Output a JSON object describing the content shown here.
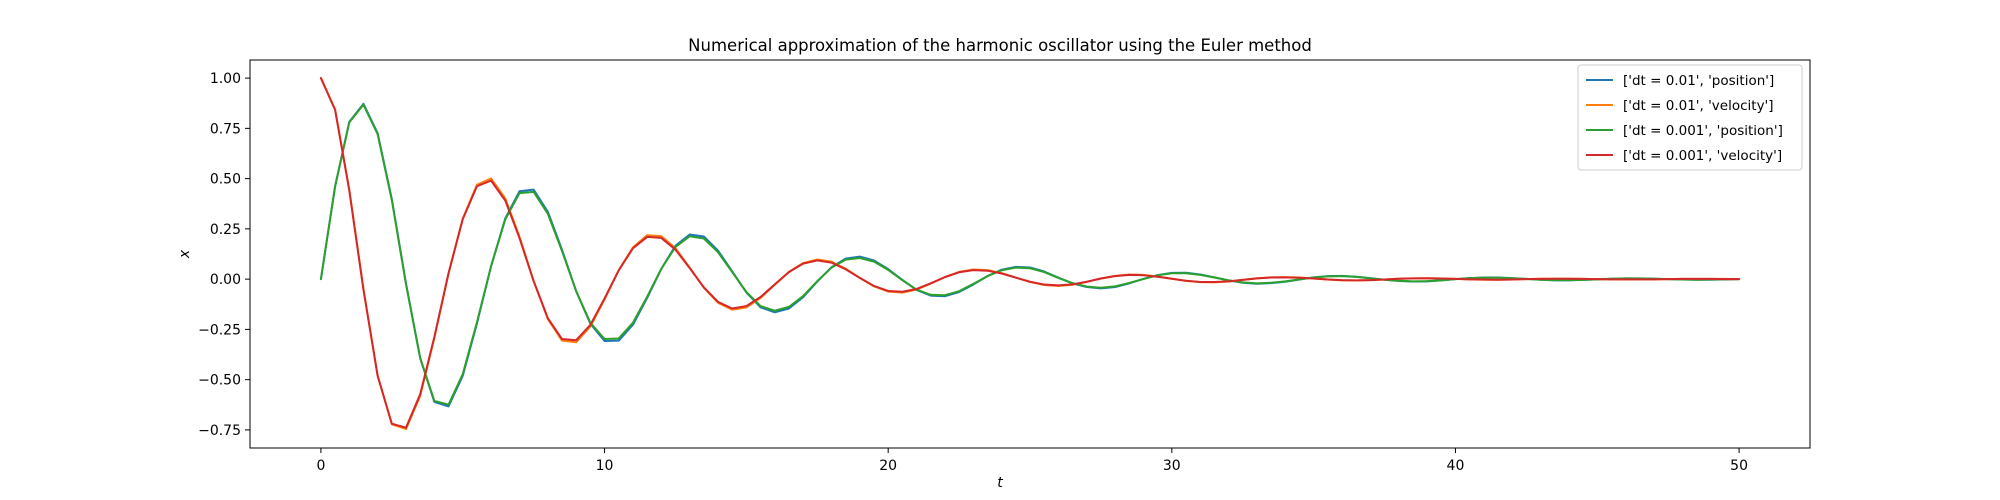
{
  "chart_data": {
    "type": "line",
    "title": "Numerical approximation of the harmonic oscillator using the Euler method",
    "xlabel": "t",
    "ylabel": "x",
    "xlim": [
      -2.5,
      52.5
    ],
    "ylim": [
      -0.84,
      1.09
    ],
    "xticks": [
      0,
      10,
      20,
      30,
      40,
      50
    ],
    "yticks": [
      -0.75,
      -0.5,
      -0.25,
      0.0,
      0.25,
      0.5,
      0.75,
      1.0
    ],
    "xtick_labels": [
      "0",
      "10",
      "20",
      "30",
      "40",
      "50"
    ],
    "ytick_labels": [
      "−0.75",
      "−0.50",
      "−0.25",
      "0.00",
      "0.25",
      "0.50",
      "0.75",
      "1.00"
    ],
    "grid": false,
    "legend_position": "top-right",
    "series": [
      {
        "name": "['dt = 0.01', 'position']",
        "color": "#1f77b4",
        "x": [
          0,
          0.5,
          1.0,
          1.5,
          2.0,
          2.5,
          3.0,
          3.5,
          4.0,
          4.5,
          5.0,
          5.5,
          6.0,
          6.5,
          7.0,
          7.5,
          8.0,
          8.5,
          9.0,
          9.5,
          10.0,
          10.5,
          11.0,
          11.5,
          12.0,
          12.5,
          13.0,
          13.5,
          14.0,
          14.5,
          15.0,
          15.5,
          16.0,
          16.5,
          17.0,
          17.5,
          18.0,
          18.5,
          19.0,
          19.5,
          20.0,
          20.5,
          21.0,
          21.5,
          22.0,
          22.5,
          23.0,
          23.5,
          24.0,
          24.5,
          25.0,
          25.5,
          26.0,
          26.5,
          27.0,
          27.5,
          28.0,
          28.5,
          29.0,
          29.5,
          30.0,
          30.5,
          31.0,
          31.5,
          32.0,
          32.5,
          33.0,
          33.5,
          34.0,
          34.5,
          35.0,
          35.5,
          36.0,
          36.5,
          37.0,
          37.5,
          38.0,
          38.5,
          39.0,
          39.5,
          40.0,
          40.5,
          41.0,
          41.5,
          42.0,
          42.5,
          43.0,
          43.5,
          44.0,
          44.5,
          45.0,
          45.5,
          46.0,
          46.5,
          47.0,
          47.5,
          48.0,
          48.5,
          49.0,
          49.5,
          50.0
        ],
        "y": [
          0.0,
          0.461,
          0.782,
          0.872,
          0.726,
          0.398,
          -0.022,
          -0.393,
          -0.611,
          -0.633,
          -0.481,
          -0.221,
          0.064,
          0.302,
          0.437,
          0.445,
          0.335,
          0.146,
          -0.06,
          -0.222,
          -0.308,
          -0.306,
          -0.227,
          -0.094,
          0.051,
          0.166,
          0.222,
          0.212,
          0.142,
          0.039,
          -0.066,
          -0.14,
          -0.165,
          -0.146,
          -0.09,
          -0.012,
          0.059,
          0.102,
          0.112,
          0.093,
          0.05,
          -0.004,
          -0.054,
          -0.082,
          -0.085,
          -0.064,
          -0.027,
          0.015,
          0.047,
          0.061,
          0.058,
          0.038,
          0.007,
          -0.021,
          -0.039,
          -0.046,
          -0.039,
          -0.021,
          0.001,
          0.02,
          0.031,
          0.032,
          0.023,
          0.009,
          -0.006,
          -0.018,
          -0.023,
          -0.02,
          -0.013,
          -0.002,
          0.009,
          0.015,
          0.016,
          0.012,
          0.005,
          -0.003,
          -0.009,
          -0.012,
          -0.011,
          -0.006,
          0.0,
          0.005,
          0.008,
          0.008,
          0.005,
          0.001,
          -0.003,
          -0.006,
          -0.006,
          -0.004,
          -0.001,
          0.002,
          0.004,
          0.004,
          0.002,
          0.0,
          -0.002,
          -0.003,
          -0.003,
          -0.001,
          0.0
        ]
      },
      {
        "name": "['dt = 0.01', 'velocity']",
        "color": "#ff7f0e",
        "x": [
          0,
          0.5,
          1.0,
          1.5,
          2.0,
          2.5,
          3.0,
          3.5,
          4.0,
          4.5,
          5.0,
          5.5,
          6.0,
          6.5,
          7.0,
          7.5,
          8.0,
          8.5,
          9.0,
          9.5,
          10.0,
          10.5,
          11.0,
          11.5,
          12.0,
          12.5,
          13.0,
          13.5,
          14.0,
          14.5,
          15.0,
          15.5,
          16.0,
          16.5,
          17.0,
          17.5,
          18.0,
          18.5,
          19.0,
          19.5,
          20.0,
          20.5,
          21.0,
          21.5,
          22.0,
          22.5,
          23.0,
          23.5,
          24.0,
          24.5,
          25.0,
          25.5,
          26.0,
          26.5,
          27.0,
          27.5,
          28.0,
          28.5,
          29.0,
          29.5,
          30.0,
          30.5,
          31.0,
          31.5,
          32.0,
          32.5,
          33.0,
          33.5,
          34.0,
          34.5,
          35.0,
          35.5,
          36.0,
          36.5,
          37.0,
          37.5,
          38.0,
          38.5,
          39.0,
          39.5,
          40.0,
          40.5,
          41.0,
          41.5,
          42.0,
          42.5,
          43.0,
          43.5,
          44.0,
          44.5,
          45.0,
          45.5,
          46.0,
          46.5,
          47.0,
          47.5,
          48.0,
          48.5,
          49.0,
          49.5,
          50.0
        ],
        "y": [
          1.0,
          0.844,
          0.445,
          -0.049,
          -0.48,
          -0.722,
          -0.746,
          -0.581,
          -0.293,
          0.028,
          0.301,
          0.469,
          0.501,
          0.402,
          0.212,
          -0.009,
          -0.198,
          -0.306,
          -0.314,
          -0.236,
          -0.101,
          0.044,
          0.158,
          0.218,
          0.214,
          0.154,
          0.058,
          -0.042,
          -0.118,
          -0.152,
          -0.141,
          -0.094,
          -0.028,
          0.036,
          0.08,
          0.098,
          0.087,
          0.052,
          0.006,
          -0.036,
          -0.062,
          -0.067,
          -0.052,
          -0.022,
          0.01,
          0.036,
          0.048,
          0.045,
          0.03,
          0.008,
          -0.014,
          -0.029,
          -0.034,
          -0.028,
          -0.014,
          0.003,
          0.016,
          0.023,
          0.021,
          0.013,
          0.002,
          -0.009,
          -0.015,
          -0.016,
          -0.012,
          -0.004,
          0.004,
          0.009,
          0.01,
          0.008,
          0.003,
          -0.002,
          -0.006,
          -0.007,
          -0.005,
          -0.002,
          0.002,
          0.004,
          0.005,
          0.003,
          0.001,
          -0.001,
          -0.003,
          -0.003,
          -0.002,
          0.0,
          0.002,
          0.002,
          0.002,
          0.001,
          0.0,
          -0.001,
          -0.002,
          -0.001,
          -0.001,
          0.0,
          0.001,
          0.001,
          0.001,
          0.001,
          0.0
        ]
      },
      {
        "name": "['dt = 0.001', 'position']",
        "color": "#2ca02c",
        "x": [
          0,
          0.5,
          1.0,
          1.5,
          2.0,
          2.5,
          3.0,
          3.5,
          4.0,
          4.5,
          5.0,
          5.5,
          6.0,
          6.5,
          7.0,
          7.5,
          8.0,
          8.5,
          9.0,
          9.5,
          10.0,
          10.5,
          11.0,
          11.5,
          12.0,
          12.5,
          13.0,
          13.5,
          14.0,
          14.5,
          15.0,
          15.5,
          16.0,
          16.5,
          17.0,
          17.5,
          18.0,
          18.5,
          19.0,
          19.5,
          20.0,
          20.5,
          21.0,
          21.5,
          22.0,
          22.5,
          23.0,
          23.5,
          24.0,
          24.5,
          25.0,
          25.5,
          26.0,
          26.5,
          27.0,
          27.5,
          28.0,
          28.5,
          29.0,
          29.5,
          30.0,
          30.5,
          31.0,
          31.5,
          32.0,
          32.5,
          33.0,
          33.5,
          34.0,
          34.5,
          35.0,
          35.5,
          36.0,
          36.5,
          37.0,
          37.5,
          38.0,
          38.5,
          39.0,
          39.5,
          40.0,
          40.5,
          41.0,
          41.5,
          42.0,
          42.5,
          43.0,
          43.5,
          44.0,
          44.5,
          45.0,
          45.5,
          46.0,
          46.5,
          47.0,
          47.5,
          48.0,
          48.5,
          49.0,
          49.5,
          50.0
        ],
        "y": [
          0.0,
          0.461,
          0.78,
          0.868,
          0.721,
          0.393,
          -0.025,
          -0.392,
          -0.606,
          -0.624,
          -0.473,
          -0.215,
          0.065,
          0.297,
          0.428,
          0.434,
          0.325,
          0.14,
          -0.06,
          -0.217,
          -0.298,
          -0.295,
          -0.217,
          -0.088,
          0.051,
          0.16,
          0.213,
          0.202,
          0.134,
          0.035,
          -0.064,
          -0.134,
          -0.157,
          -0.138,
          -0.084,
          -0.01,
          0.057,
          0.097,
          0.105,
          0.087,
          0.046,
          -0.005,
          -0.052,
          -0.078,
          -0.08,
          -0.06,
          -0.024,
          0.015,
          0.044,
          0.057,
          0.054,
          0.035,
          0.006,
          -0.02,
          -0.037,
          -0.043,
          -0.036,
          -0.019,
          0.001,
          0.019,
          0.029,
          0.029,
          0.021,
          0.008,
          -0.006,
          -0.016,
          -0.021,
          -0.018,
          -0.011,
          -0.001,
          0.008,
          0.014,
          0.015,
          0.011,
          0.004,
          -0.003,
          -0.008,
          -0.011,
          -0.01,
          -0.006,
          0.0,
          0.005,
          0.007,
          0.007,
          0.004,
          0.001,
          -0.003,
          -0.005,
          -0.005,
          -0.004,
          -0.001,
          0.002,
          0.004,
          0.003,
          0.002,
          0.0,
          -0.002,
          -0.003,
          -0.002,
          -0.001,
          0.0
        ]
      },
      {
        "name": "['dt = 0.001', 'velocity']",
        "color": "#d62728",
        "x": [
          0,
          0.5,
          1.0,
          1.5,
          2.0,
          2.5,
          3.0,
          3.5,
          4.0,
          4.5,
          5.0,
          5.5,
          6.0,
          6.5,
          7.0,
          7.5,
          8.0,
          8.5,
          9.0,
          9.5,
          10.0,
          10.5,
          11.0,
          11.5,
          12.0,
          12.5,
          13.0,
          13.5,
          14.0,
          14.5,
          15.0,
          15.5,
          16.0,
          16.5,
          17.0,
          17.5,
          18.0,
          18.5,
          19.0,
          19.5,
          20.0,
          20.5,
          21.0,
          21.5,
          22.0,
          22.5,
          23.0,
          23.5,
          24.0,
          24.5,
          25.0,
          25.5,
          26.0,
          26.5,
          27.0,
          27.5,
          28.0,
          28.5,
          29.0,
          29.5,
          30.0,
          30.5,
          31.0,
          31.5,
          32.0,
          32.5,
          33.0,
          33.5,
          34.0,
          34.5,
          35.0,
          35.5,
          36.0,
          36.5,
          37.0,
          37.5,
          38.0,
          38.5,
          39.0,
          39.5,
          40.0,
          40.5,
          41.0,
          41.5,
          42.0,
          42.5,
          43.0,
          43.5,
          44.0,
          44.5,
          45.0,
          45.5,
          46.0,
          46.5,
          47.0,
          47.5,
          48.0,
          48.5,
          49.0,
          49.5,
          50.0
        ],
        "y": [
          1.0,
          0.842,
          0.442,
          -0.052,
          -0.481,
          -0.719,
          -0.739,
          -0.573,
          -0.287,
          0.03,
          0.298,
          0.462,
          0.49,
          0.391,
          0.205,
          -0.01,
          -0.194,
          -0.298,
          -0.304,
          -0.228,
          -0.096,
          0.044,
          0.153,
          0.21,
          0.205,
          0.147,
          0.055,
          -0.041,
          -0.113,
          -0.146,
          -0.134,
          -0.089,
          -0.026,
          0.035,
          0.077,
          0.093,
          0.082,
          0.049,
          0.006,
          -0.034,
          -0.059,
          -0.063,
          -0.049,
          -0.021,
          0.01,
          0.034,
          0.045,
          0.042,
          0.028,
          0.007,
          -0.013,
          -0.027,
          -0.031,
          -0.026,
          -0.013,
          0.003,
          0.015,
          0.021,
          0.019,
          0.012,
          0.002,
          -0.008,
          -0.014,
          -0.014,
          -0.011,
          -0.004,
          0.004,
          0.008,
          0.009,
          0.007,
          0.003,
          -0.002,
          -0.005,
          -0.006,
          -0.005,
          -0.002,
          0.002,
          0.004,
          0.004,
          0.003,
          0.001,
          -0.001,
          -0.002,
          -0.003,
          -0.002,
          0.0,
          0.001,
          0.002,
          0.002,
          0.001,
          0.0,
          -0.001,
          -0.001,
          -0.001,
          -0.001,
          0.0,
          0.001,
          0.001,
          0.001,
          0.0,
          0.0
        ]
      }
    ]
  }
}
